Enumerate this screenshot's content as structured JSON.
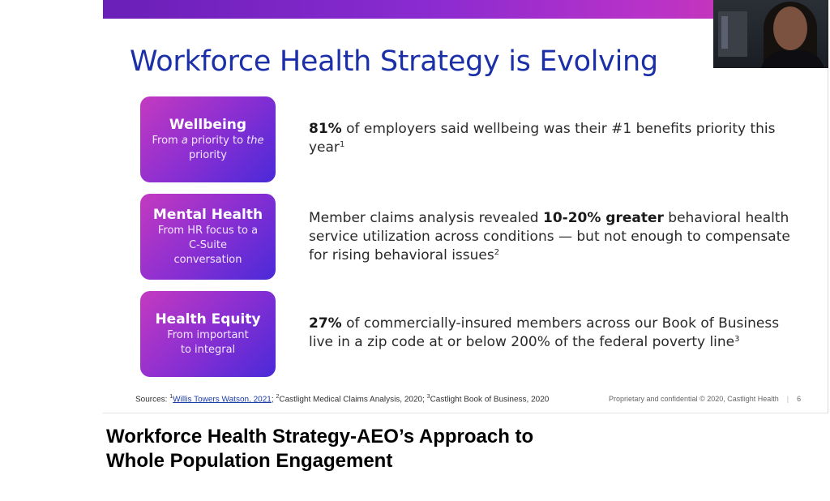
{
  "slide": {
    "title": "Workforce Health Strategy is Evolving",
    "cards": [
      {
        "title": "Wellbeing",
        "subtitle_parts": [
          "From ",
          "a",
          " priority to ",
          "the",
          " priority"
        ],
        "desc": {
          "bold_lead": "81%",
          "text_a": " of employers said wellbeing was their #1 benefits priority this year",
          "bold_mid": "",
          "text_b": "",
          "sup": "1"
        }
      },
      {
        "title": "Mental Health",
        "subtitle": "From HR focus to a C-Suite conversation",
        "desc": {
          "bold_lead": "",
          "text_a": "Member claims analysis revealed ",
          "bold_mid": "10-20% greater",
          "text_b": " behavioral health service utilization across conditions — but not enough to compensate for rising behavioral issues",
          "sup": "2"
        }
      },
      {
        "title": "Health Equity",
        "subtitle": "From important to integral",
        "desc": {
          "bold_lead": "27%",
          "text_a": " of commercially-insured members across our Book of Business live in a zip code at or below 200% of the federal poverty line",
          "bold_mid": "",
          "text_b": "",
          "sup": "3"
        }
      }
    ],
    "sources": {
      "label": "Sources: ",
      "sup1": "1",
      "link_text": "Willis Towers Watson, 2021",
      "sup2": "2",
      "ref2": "Castlight Medical Claims Analysis, 2020; ",
      "sup3": "3",
      "ref3": "Castlight Book of Business, 2020"
    },
    "footer": {
      "confidential": "Proprietary and confidential © 2020, Castlight Health",
      "separator": "|",
      "page_number": "6"
    }
  },
  "caption": {
    "line1": "Workforce Health Strategy-AEO’s Approach to",
    "line2": "Whole Population Engagement"
  },
  "colors": {
    "title": "#1b2fa8",
    "card_gradient_start": "#c43ac0",
    "card_gradient_end": "#4a2ad8",
    "top_bar_start": "#6a1fb8",
    "top_bar_end": "#d43aa8"
  }
}
